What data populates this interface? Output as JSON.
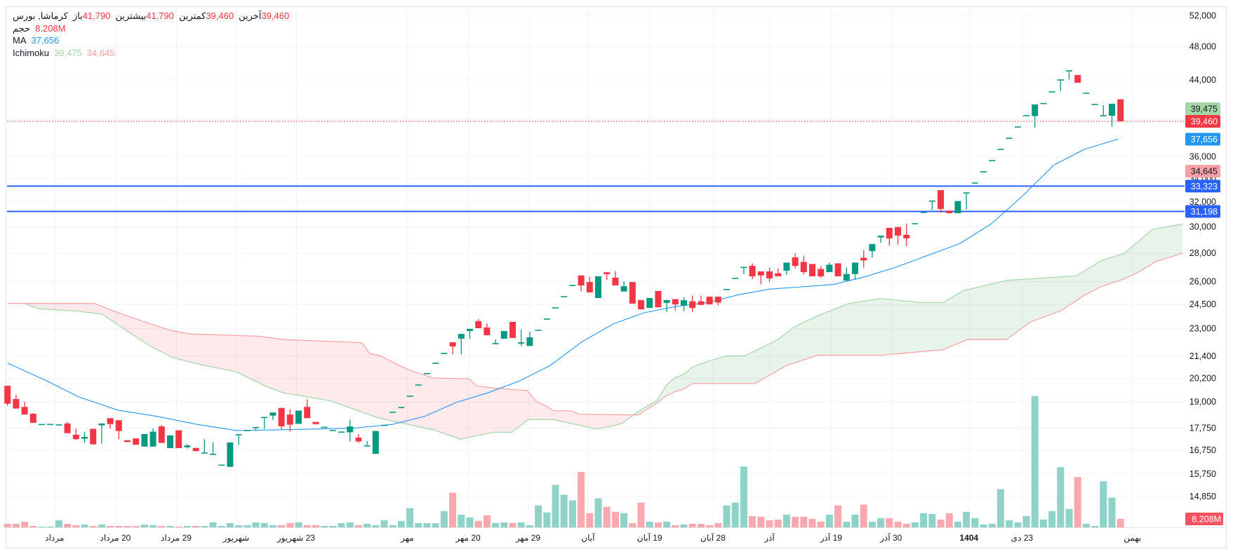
{
  "legend": {
    "symbol": "کرماشا, بورس",
    "open_label": "باز",
    "open": "41,790",
    "high_label": "بیشترین",
    "high": "41,790",
    "low_label": "کمترین",
    "low": "39,460",
    "close_label": "آخرین",
    "close": "39,460",
    "volume_label": "حجم",
    "volume": "8.208M",
    "ma_label": "MA",
    "ma": "37,656",
    "ichimoku_label": "Ichimoku",
    "ichimoku_a": "39,475",
    "ichimoku_b": "34,645"
  },
  "colors": {
    "up": "#089981",
    "down": "#f23645",
    "vol_up": "#8fd3c8",
    "vol_down": "#f8a8ae",
    "ma": "#2196f3",
    "span_a": "#a5d6a7",
    "span_b": "#f7a1a6",
    "cloud_up": "rgba(67,160,71,0.12)",
    "cloud_down": "rgba(242,54,69,0.11)",
    "hline": "#2962ff"
  },
  "chart_data": {
    "type": "candlestick",
    "title": "کرماشا, بورس",
    "y_scale": "log",
    "ylim": [
      14300,
      53000
    ],
    "y_ticks": [
      52000,
      48000,
      44000,
      36000,
      34000,
      32000,
      30000,
      28000,
      26000,
      24500,
      23000,
      21400,
      20200,
      19000,
      17750,
      16750,
      15750,
      14850
    ],
    "y_tick_labels": [
      "52,000",
      "48,000",
      "44,000",
      "36,000",
      "34,000",
      "32,000",
      "30,000",
      "28,000",
      "26,000",
      "24,500",
      "23,000",
      "21,400",
      "20,200",
      "19,000",
      "17,750",
      "16,750",
      "15,750",
      "14,850"
    ],
    "x_ticks": [
      {
        "bar": 6.5,
        "label": "مرداد"
      },
      {
        "bar": 13.6,
        "label": "20 مرداد"
      },
      {
        "bar": 20.7,
        "label": "29 مرداد"
      },
      {
        "bar": 27.7,
        "label": "شهریور"
      },
      {
        "bar": 34.7,
        "label": "23 شهریور"
      },
      {
        "bar": 47.7,
        "label": "مهر"
      },
      {
        "bar": 54.8,
        "label": "20 مهر"
      },
      {
        "bar": 61.8,
        "label": "29 مهر"
      },
      {
        "bar": 68.8,
        "label": "آبان"
      },
      {
        "bar": 76.0,
        "label": "19 آبان"
      },
      {
        "bar": 83.4,
        "label": "28 آبان"
      },
      {
        "bar": 90.0,
        "label": "آذر"
      },
      {
        "bar": 97.2,
        "label": "19 آذر"
      },
      {
        "bar": 104.2,
        "label": "30 آذر"
      },
      {
        "bar": 113.3,
        "label": "1404",
        "bold": true
      },
      {
        "bar": 119.5,
        "label": "23 دی"
      },
      {
        "bar": 132.4,
        "label": "بهمن"
      }
    ],
    "ohlc": [
      [
        19800,
        19800,
        18800,
        18900
      ],
      [
        19130,
        19340,
        18660,
        18660
      ],
      [
        18740,
        19000,
        18370,
        18370
      ],
      [
        18410,
        18440,
        17980,
        17980
      ],
      17900,
      17900,
      17880,
      [
        17950,
        18020,
        17500,
        17500
      ],
      [
        17430,
        17700,
        17200,
        17230
      ],
      [
        17250,
        17570,
        17060,
        17330
      ],
      [
        17700,
        17700,
        16980,
        17000
      ],
      [
        17860,
        17950,
        17030,
        17950
      ],
      [
        18200,
        18200,
        17710,
        17920
      ],
      [
        18100,
        18100,
        17230,
        17600
      ],
      [
        17180,
        17180,
        17100,
        17100
      ],
      [
        17260,
        17260,
        16980,
        16980
      ],
      [
        16900,
        17460,
        16900,
        17460
      ],
      [
        16900,
        17710,
        16900,
        17570
      ],
      [
        17810,
        17880,
        17060,
        17060
      ],
      [
        16830,
        17400,
        16830,
        17400
      ],
      [
        17630,
        17630,
        16830,
        16830
      ],
      [
        16870,
        17000,
        16810,
        16950
      ],
      [
        16840,
        16840,
        16700,
        16700
      ],
      [
        16620,
        17230,
        16620,
        16620
      ],
      [
        16560,
        17080,
        16560,
        16560
      ],
      16100,
      [
        16030,
        17080,
        16030,
        17080
      ],
      [
        17380,
        17430,
        16980,
        17430
      ],
      17620,
      [
        17760,
        17760,
        17600,
        17760
      ],
      [
        18230,
        18230,
        17700,
        18230
      ],
      [
        18320,
        18470,
        18110,
        18470
      ],
      [
        18690,
        18690,
        17680,
        17820
      ],
      [
        18370,
        18630,
        17570,
        17890
      ],
      [
        17930,
        18560,
        17930,
        18560
      ],
      [
        18740,
        19110,
        18200,
        18200
      ],
      [
        18020,
        18020,
        17920,
        17920
      ],
      17770,
      17620,
      17550,
      [
        17540,
        18130,
        17130,
        17810
      ],
      [
        17300,
        17460,
        17060,
        17130
      ],
      [
        16930,
        17150,
        16930,
        16930
      ],
      [
        16580,
        17600,
        16580,
        17600
      ],
      17860,
      18480,
      18710,
      19270,
      19840,
      20440,
      21000,
      21540,
      [
        22180,
        22180,
        21500,
        21940
      ],
      [
        22390,
        22670,
        21500,
        22670
      ],
      [
        22840,
        22970,
        22390,
        22970
      ],
      [
        23430,
        23550,
        23010,
        23010
      ],
      [
        23050,
        23300,
        22590,
        22590
      ],
      [
        22100,
        22340,
        22100,
        22100
      ],
      [
        22390,
        22840,
        22390,
        22840
      ],
      [
        23390,
        23390,
        22430,
        22430
      ],
      [
        22100,
        22930,
        21970,
        22180
      ],
      [
        21970,
        22800,
        21970,
        22470
      ],
      22880,
      23560,
      24260,
      24980,
      25720,
      [
        26400,
        26400,
        25320,
        25720
      ],
      [
        25950,
        26300,
        25260,
        25260
      ],
      [
        24890,
        26340,
        24890,
        26340
      ],
      [
        26620,
        26620,
        26100,
        26490
      ],
      [
        26250,
        26700,
        25720,
        25720
      ],
      [
        25320,
        26000,
        25320,
        25670
      ],
      [
        25950,
        25950,
        24530,
        24530
      ],
      [
        24760,
        24760,
        24170,
        24170
      ],
      [
        24260,
        24890,
        24260,
        24890
      ],
      [
        25350,
        25350,
        24300,
        24300
      ],
      [
        24580,
        24760,
        24000,
        24760
      ],
      [
        24820,
        24820,
        24100,
        24480
      ],
      [
        24400,
        24950,
        24050,
        24750
      ],
      [
        24680,
        25050,
        24000,
        24250
      ],
      [
        24680,
        25050,
        24450,
        24450
      ],
      [
        24980,
        24980,
        24480,
        24480
      ],
      [
        24980,
        24980,
        24400,
        24600
      ],
      25450,
      26200,
      [
        26960,
        26960,
        26500,
        26960
      ],
      [
        27070,
        27250,
        26150,
        26340
      ],
      [
        26680,
        26680,
        25800,
        26400
      ],
      [
        26680,
        26950,
        25950,
        26200
      ],
      [
        26550,
        26900,
        26340,
        26340
      ],
      [
        26730,
        27300,
        26450,
        27300
      ],
      [
        27670,
        28000,
        26900,
        27070
      ],
      [
        27350,
        27800,
        26450,
        26630
      ],
      [
        27200,
        27200,
        26340,
        26340
      ],
      [
        26850,
        27050,
        26250,
        26340
      ],
      [
        26630,
        27300,
        26630,
        27150
      ],
      [
        27250,
        27250,
        26340,
        26340
      ],
      [
        26050,
        26950,
        26050,
        26500
      ],
      [
        26500,
        27300,
        26100,
        27300
      ],
      [
        27650,
        28200,
        26950,
        27450
      ],
      [
        28130,
        28650,
        27650,
        28650
      ],
      [
        29150,
        29290,
        28750,
        29290
      ],
      [
        29890,
        29890,
        28550,
        29080
      ],
      [
        29950,
        29950,
        28600,
        29290
      ],
      [
        29350,
        30200,
        28500,
        29080
      ],
      30210,
      31110,
      [
        32050,
        32050,
        31300,
        32050
      ],
      [
        32980,
        32980,
        31100,
        31400
      ],
      [
        31260,
        31260,
        31050,
        31050
      ],
      [
        31050,
        32050,
        31050,
        32050
      ],
      [
        32740,
        32740,
        31350,
        32740
      ],
      33590,
      34590,
      35620,
      36670,
      37750,
      38880,
      40040,
      [
        40000,
        41230,
        38830,
        41230
      ],
      41330,
      42600,
      [
        43950,
        43950,
        42700,
        43950
      ],
      [
        45010,
        45010,
        44000,
        45010
      ],
      [
        44510,
        44510,
        43630,
        43630
      ],
      42450,
      41230,
      [
        40040,
        41150,
        40040,
        40040
      ],
      [
        40040,
        41300,
        38900,
        41300
      ],
      [
        41790,
        41790,
        39460,
        39460
      ]
    ],
    "volume_millions": [
      3.4,
      3.4,
      5.5,
      1.4,
      0.7,
      0.7,
      6.8,
      3.4,
      2.1,
      2.7,
      1.4,
      2.7,
      1.4,
      1.4,
      1.4,
      1.4,
      2.7,
      2.1,
      1.4,
      1.4,
      0.7,
      1.4,
      1.4,
      1.4,
      4.8,
      1.4,
      4.1,
      2.1,
      2.1,
      4.8,
      4.1,
      2.1,
      2.1,
      4.1,
      4.8,
      2.1,
      2.1,
      1.4,
      1.4,
      4.1,
      4.8,
      2.1,
      3.4,
      2.1,
      6.8,
      2.1,
      6.2,
      18.5,
      4.1,
      4.1,
      4.1,
      15.7,
      33.5,
      12.3,
      9.6,
      6.2,
      11.6,
      4.1,
      4.8,
      4.1,
      4.8,
      2.1,
      21.2,
      14.4,
      41.0,
      31.5,
      26.0,
      53.4,
      13.7,
      28.0,
      19.8,
      15.0,
      13.7,
      4.1,
      23.9,
      5.5,
      4.8,
      5.5,
      2.1,
      2.7,
      3.4,
      3.4,
      2.1,
      4.1,
      21.2,
      23.9,
      58.8,
      10.9,
      10.3,
      6.8,
      7.5,
      12.3,
      10.3,
      10.3,
      8.2,
      5.5,
      12.3,
      21.2,
      5.5,
      12.3,
      21.9,
      5.5,
      8.9,
      8.9,
      5.5,
      3.4,
      4.8,
      13.7,
      13.0,
      7.5,
      13.7,
      5.5,
      15.0,
      8.9,
      2.7,
      3.4,
      36.9,
      6.8,
      4.8,
      10.9,
      126.8,
      7.5,
      15.7,
      58.1,
      17.8,
      48.6,
      3.4,
      1.4,
      44.5,
      28.7,
      8.208
    ],
    "ma": {
      "name": "MA",
      "x": [
        1,
        5.6,
        9.3,
        13.9,
        18.5,
        23.1,
        27.7,
        32.3,
        36.8,
        41.4,
        46.0,
        49.7,
        53.4,
        57.1,
        60.8,
        64.4,
        68.1,
        71.8,
        75.4,
        79.1,
        82.8,
        86.4,
        90.1,
        93.8,
        97.5,
        101.2,
        104.8,
        108.5,
        112.2,
        115.9,
        119.5,
        123.2,
        126.8,
        130.7
      ],
      "values": [
        21010,
        20050,
        19240,
        18580,
        18280,
        17910,
        17620,
        17650,
        17690,
        17730,
        17910,
        18280,
        18960,
        19440,
        20050,
        20880,
        22210,
        23280,
        23960,
        24350,
        24600,
        25110,
        25480,
        25630,
        25790,
        26320,
        26980,
        27820,
        28680,
        30200,
        32440,
        35200,
        36680,
        37670
      ]
    },
    "ichimoku_span_a": {
      "x": [
        1,
        2.9,
        4.7,
        9.3,
        12.1,
        14.8,
        17.6,
        20.3,
        24,
        27.7,
        31.3,
        33.2,
        38.7,
        44.4,
        50.7,
        53.9,
        57.7,
        59.9,
        61.8,
        64.7,
        67.3,
        69.8,
        71.8,
        72.9,
        74.5,
        76.9,
        77.9,
        78.9,
        80,
        81,
        83,
        85,
        87.1,
        91,
        92.9,
        95.6,
        99.3,
        103,
        107.6,
        110.3,
        112.6,
        117.7,
        125.9,
        128.7,
        131.5,
        134.7,
        138.3
      ],
      "values": [
        24550,
        24550,
        24200,
        24050,
        23860,
        22900,
        21980,
        21310,
        20880,
        20540,
        19750,
        19440,
        19040,
        18200,
        17660,
        17230,
        17540,
        17540,
        18130,
        18130,
        17910,
        17690,
        17840,
        17980,
        18470,
        19080,
        19800,
        20210,
        20410,
        20790,
        21140,
        21400,
        21400,
        22340,
        23090,
        23760,
        24550,
        24860,
        24600,
        24600,
        25370,
        26060,
        26380,
        27420,
        27990,
        29760,
        30200
      ]
    },
    "ichimoku_span_b": {
      "x": [
        1,
        11.1,
        13.9,
        17.1,
        19.9,
        22.2,
        30.4,
        33.2,
        42.4,
        43.3,
        44.4,
        47.7,
        50.7,
        54.9,
        55.8,
        57.8,
        61.7,
        62.8,
        63.8,
        64.8,
        66.8,
        67.8,
        74.7,
        75.8,
        76.9,
        77.9,
        78.9,
        80,
        81,
        88.3,
        92,
        95.6,
        103,
        110.3,
        113.1,
        117.7,
        120.4,
        124.1,
        126.9,
        128.7,
        131.4,
        133.3,
        135.1,
        138.3
      ],
      "values": [
        24550,
        24550,
        23960,
        23370,
        22900,
        22670,
        22530,
        22340,
        22160,
        21530,
        21440,
        20670,
        20210,
        20170,
        19800,
        19680,
        19560,
        19000,
        18810,
        18550,
        18550,
        18390,
        18350,
        18660,
        18930,
        19280,
        19480,
        19640,
        19920,
        19920,
        20880,
        21440,
        21440,
        21760,
        22340,
        22340,
        23370,
        24100,
        25110,
        25630,
        26160,
        26700,
        27370,
        27990
      ]
    },
    "horizontal_lines": [
      {
        "value": 33323,
        "label": "33,323"
      },
      {
        "value": 31198,
        "label": "31,198"
      }
    ],
    "price_labels": [
      {
        "key": "ichimoku-a",
        "value": 39475,
        "label": "39,475",
        "bg": "#a5d6a7",
        "fg": "#131722"
      },
      {
        "key": "last-price",
        "value": 39460,
        "label": "39,460",
        "bg": "#f23645",
        "fg": "#ffffff"
      },
      {
        "key": "ma",
        "value": 37656,
        "label": "37,656",
        "bg": "#2196f3",
        "fg": "#ffffff"
      },
      {
        "key": "ichimoku-b",
        "value": 34645,
        "label": "34,645",
        "bg": "#f7a1a6",
        "fg": "#131722"
      },
      {
        "key": "hline-1",
        "value": 33323,
        "label": "33,323",
        "bg": "#2962ff",
        "fg": "#ffffff"
      },
      {
        "key": "hline-2",
        "value": 31198,
        "label": "31,198",
        "bg": "#2962ff",
        "fg": "#ffffff"
      }
    ],
    "volume_label": {
      "label": "8.208M",
      "bg": "#f7525f",
      "fg": "#ffffff"
    },
    "last_price": 39460
  }
}
